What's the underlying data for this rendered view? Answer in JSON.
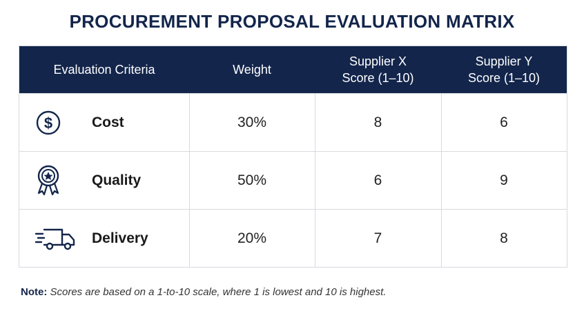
{
  "header": {
    "title": "PROCUREMENT PROPOSAL EVALUATION MATRIX"
  },
  "table": {
    "columns": [
      [
        "Evaluation Criteria"
      ],
      [
        "Weight"
      ],
      [
        "Supplier X",
        "Score (1–10)"
      ],
      [
        "Supplier Y",
        "Score (1–10)"
      ]
    ],
    "rows": [
      [
        "Cost",
        "30%",
        "8",
        "6"
      ],
      [
        "Quality",
        "50%",
        "6",
        "9"
      ],
      [
        "Delivery",
        "20%",
        "7",
        "8"
      ]
    ]
  },
  "note": {
    "label": "Note:",
    "text": "Scores are based on a 1-to-10 scale, where 1 is lowest and 10 is highest."
  }
}
